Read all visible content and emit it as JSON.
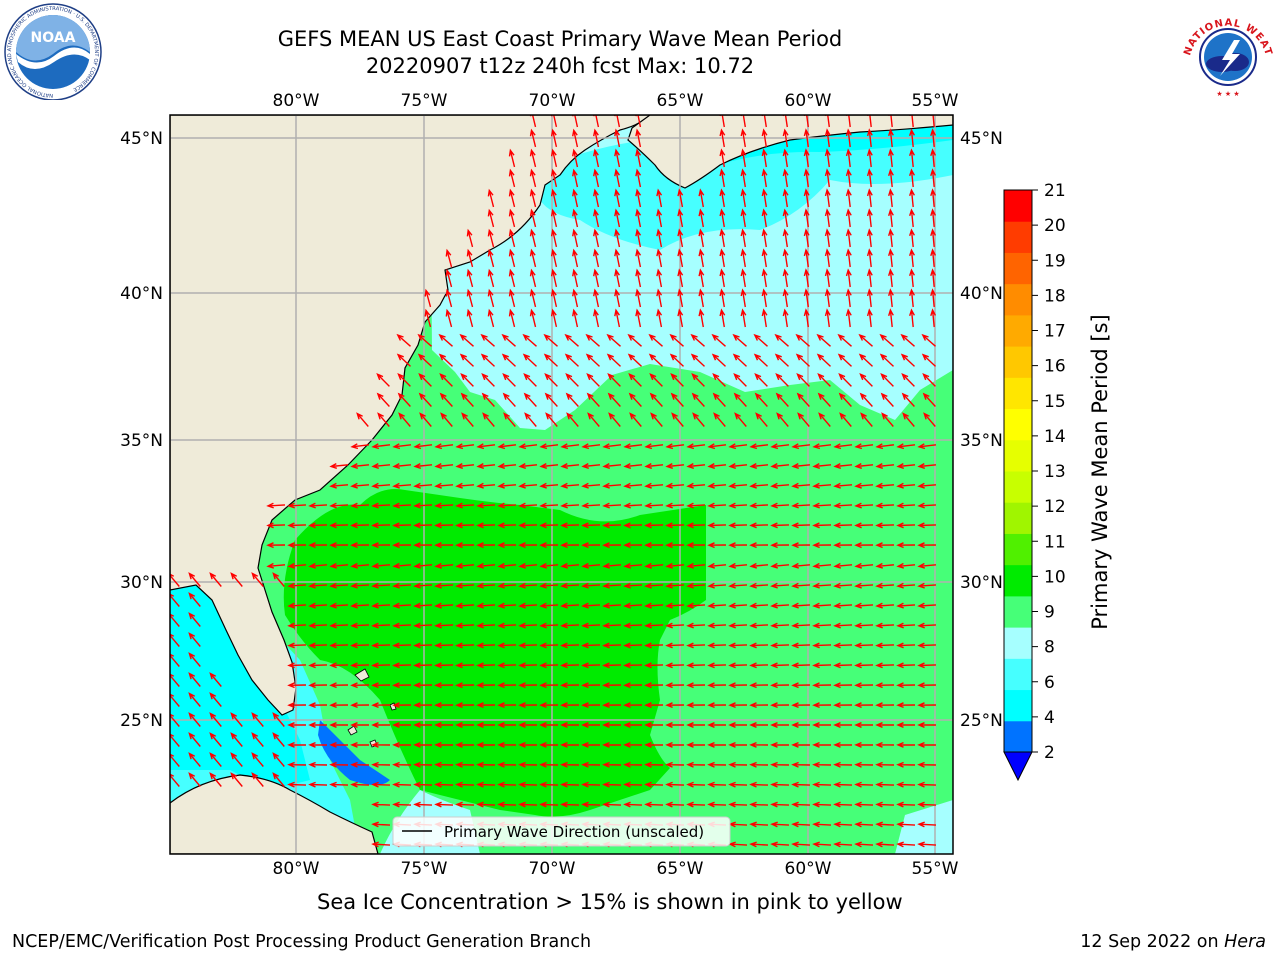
{
  "title": {
    "line1": "GEFS MEAN US East Coast Primary Wave Mean Period",
    "line2": "20220907 t12z 240h fcst   Max: 10.72"
  },
  "map": {
    "lon_labels": [
      "80°W",
      "75°W",
      "70°W",
      "65°W",
      "60°W",
      "55°W"
    ],
    "lat_labels": [
      "45°N",
      "40°N",
      "35°N",
      "30°N",
      "25°N"
    ],
    "legend_label": "Primary Wave Direction (unscaled)",
    "arrow_color": "#ff0000",
    "land_color": "#efebd9"
  },
  "colorbar": {
    "label": "Primary Wave Mean Period [s]",
    "ticks": [
      "21",
      "20",
      "19",
      "18",
      "17",
      "16",
      "15",
      "14",
      "13",
      "12",
      "11",
      "10",
      "9",
      "8",
      "6",
      "4",
      "2"
    ],
    "colors": [
      "#0000ff",
      "#0073ff",
      "#00ffff",
      "#46ffff",
      "#a6ffff",
      "#46ff78",
      "#00eb00",
      "#50f000",
      "#a0f500",
      "#c8ff00",
      "#e6ff00",
      "#ffff00",
      "#ffe600",
      "#ffc800",
      "#ffaa00",
      "#ff8c00",
      "#ff6400",
      "#ff3c00",
      "#ff0000"
    ]
  },
  "logos": {
    "noaa_text": "NOAA",
    "noaa_ring": "NATIONAL OCEANIC AND ATMOSPHERIC ADMINISTRATION · U.S. DEPARTMENT OF COMMERCE",
    "nws_ring": "NATIONAL WEATHER SERVICE"
  },
  "notes": {
    "sea_ice": "Sea Ice Concentration > 15% is shown in pink to yellow"
  },
  "footer": {
    "left": "NCEP/EMC/Verification Post Processing Product Generation Branch",
    "right_date": "12 Sep 2022 on ",
    "right_machine": "Hera"
  }
}
